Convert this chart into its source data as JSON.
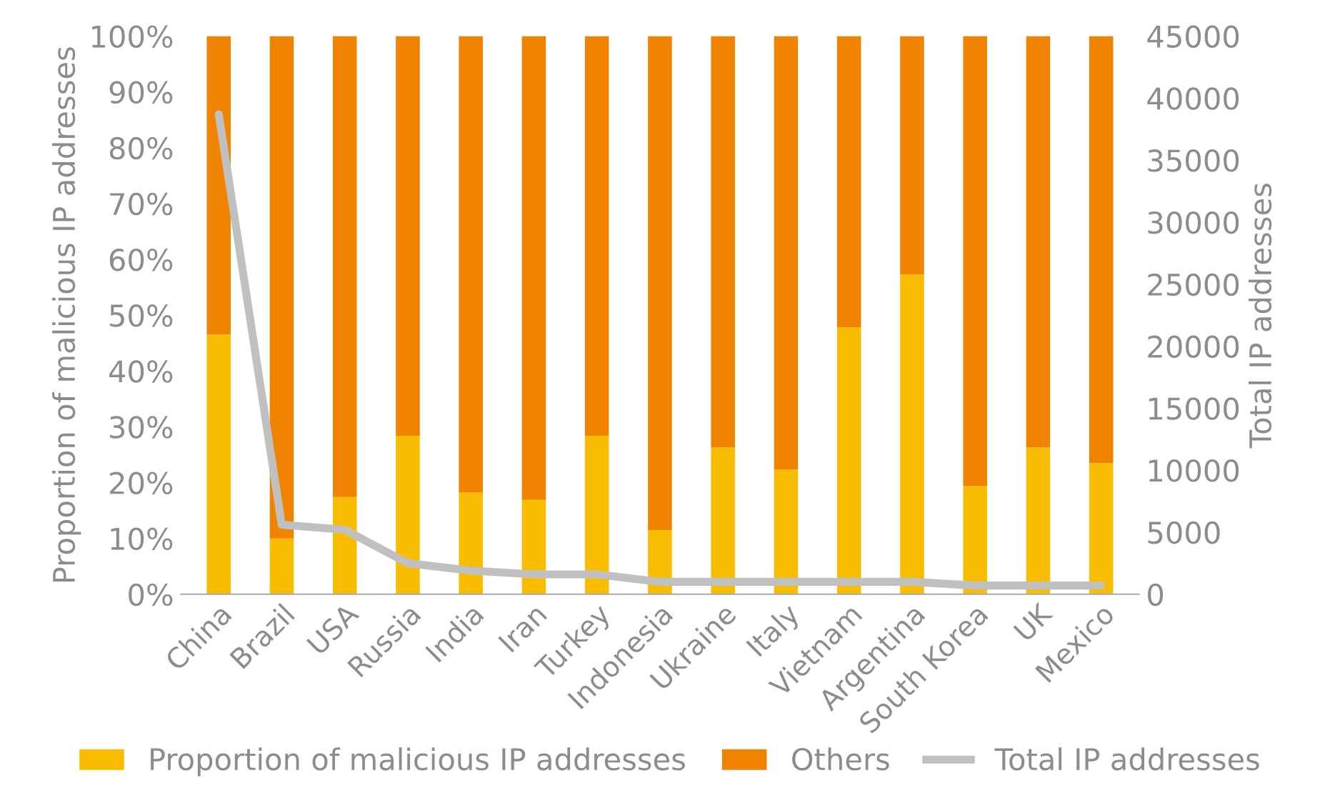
{
  "chart_data": {
    "type": "bar",
    "stacked": true,
    "categories": [
      "China",
      "Brazil",
      "USA",
      "Russia",
      "India",
      "Iran",
      "Turkey",
      "Indonesia",
      "Ukraine",
      "Italy",
      "Vietnam",
      "Argentina",
      "South Korea",
      "UK",
      "Mexico"
    ],
    "series": [
      {
        "name": "Proportion of malicious IP addresses",
        "color": "#f8bd00",
        "values": [
          46.5,
          10.0,
          17.4,
          28.4,
          18.2,
          16.9,
          28.4,
          11.5,
          26.3,
          22.3,
          47.8,
          57.3,
          19.4,
          26.3,
          23.5
        ]
      },
      {
        "name": "Others",
        "color": "#f08300",
        "values": [
          53.5,
          90.0,
          82.6,
          71.6,
          81.8,
          83.1,
          71.6,
          88.5,
          73.7,
          77.7,
          52.2,
          42.7,
          80.6,
          73.7,
          76.5
        ]
      },
      {
        "name": "Total IP addresses",
        "type": "line",
        "axis": "y2",
        "color": "#c0c0c0",
        "values": [
          38700,
          5600,
          5200,
          2500,
          1900,
          1600,
          1600,
          1000,
          1000,
          1000,
          1000,
          1000,
          700,
          700,
          700
        ]
      }
    ],
    "ylabel": "Proportion of malicious IP addresses",
    "y2label": "Total IP addresses",
    "ylim": [
      0,
      100
    ],
    "yticks": [
      {
        "value": 0,
        "label": "0%"
      },
      {
        "value": 10,
        "label": "10%"
      },
      {
        "value": 20,
        "label": "20%"
      },
      {
        "value": 30,
        "label": "30%"
      },
      {
        "value": 40,
        "label": "40%"
      },
      {
        "value": 50,
        "label": "50%"
      },
      {
        "value": 60,
        "label": "60%"
      },
      {
        "value": 70,
        "label": "70%"
      },
      {
        "value": 80,
        "label": "80%"
      },
      {
        "value": 90,
        "label": "90%"
      },
      {
        "value": 100,
        "label": "100%"
      }
    ],
    "y2lim": [
      0,
      45000
    ],
    "y2ticks": [
      0,
      5000,
      10000,
      15000,
      20000,
      25000,
      30000,
      35000,
      40000,
      45000
    ],
    "grid": false,
    "legend": "bottom"
  }
}
